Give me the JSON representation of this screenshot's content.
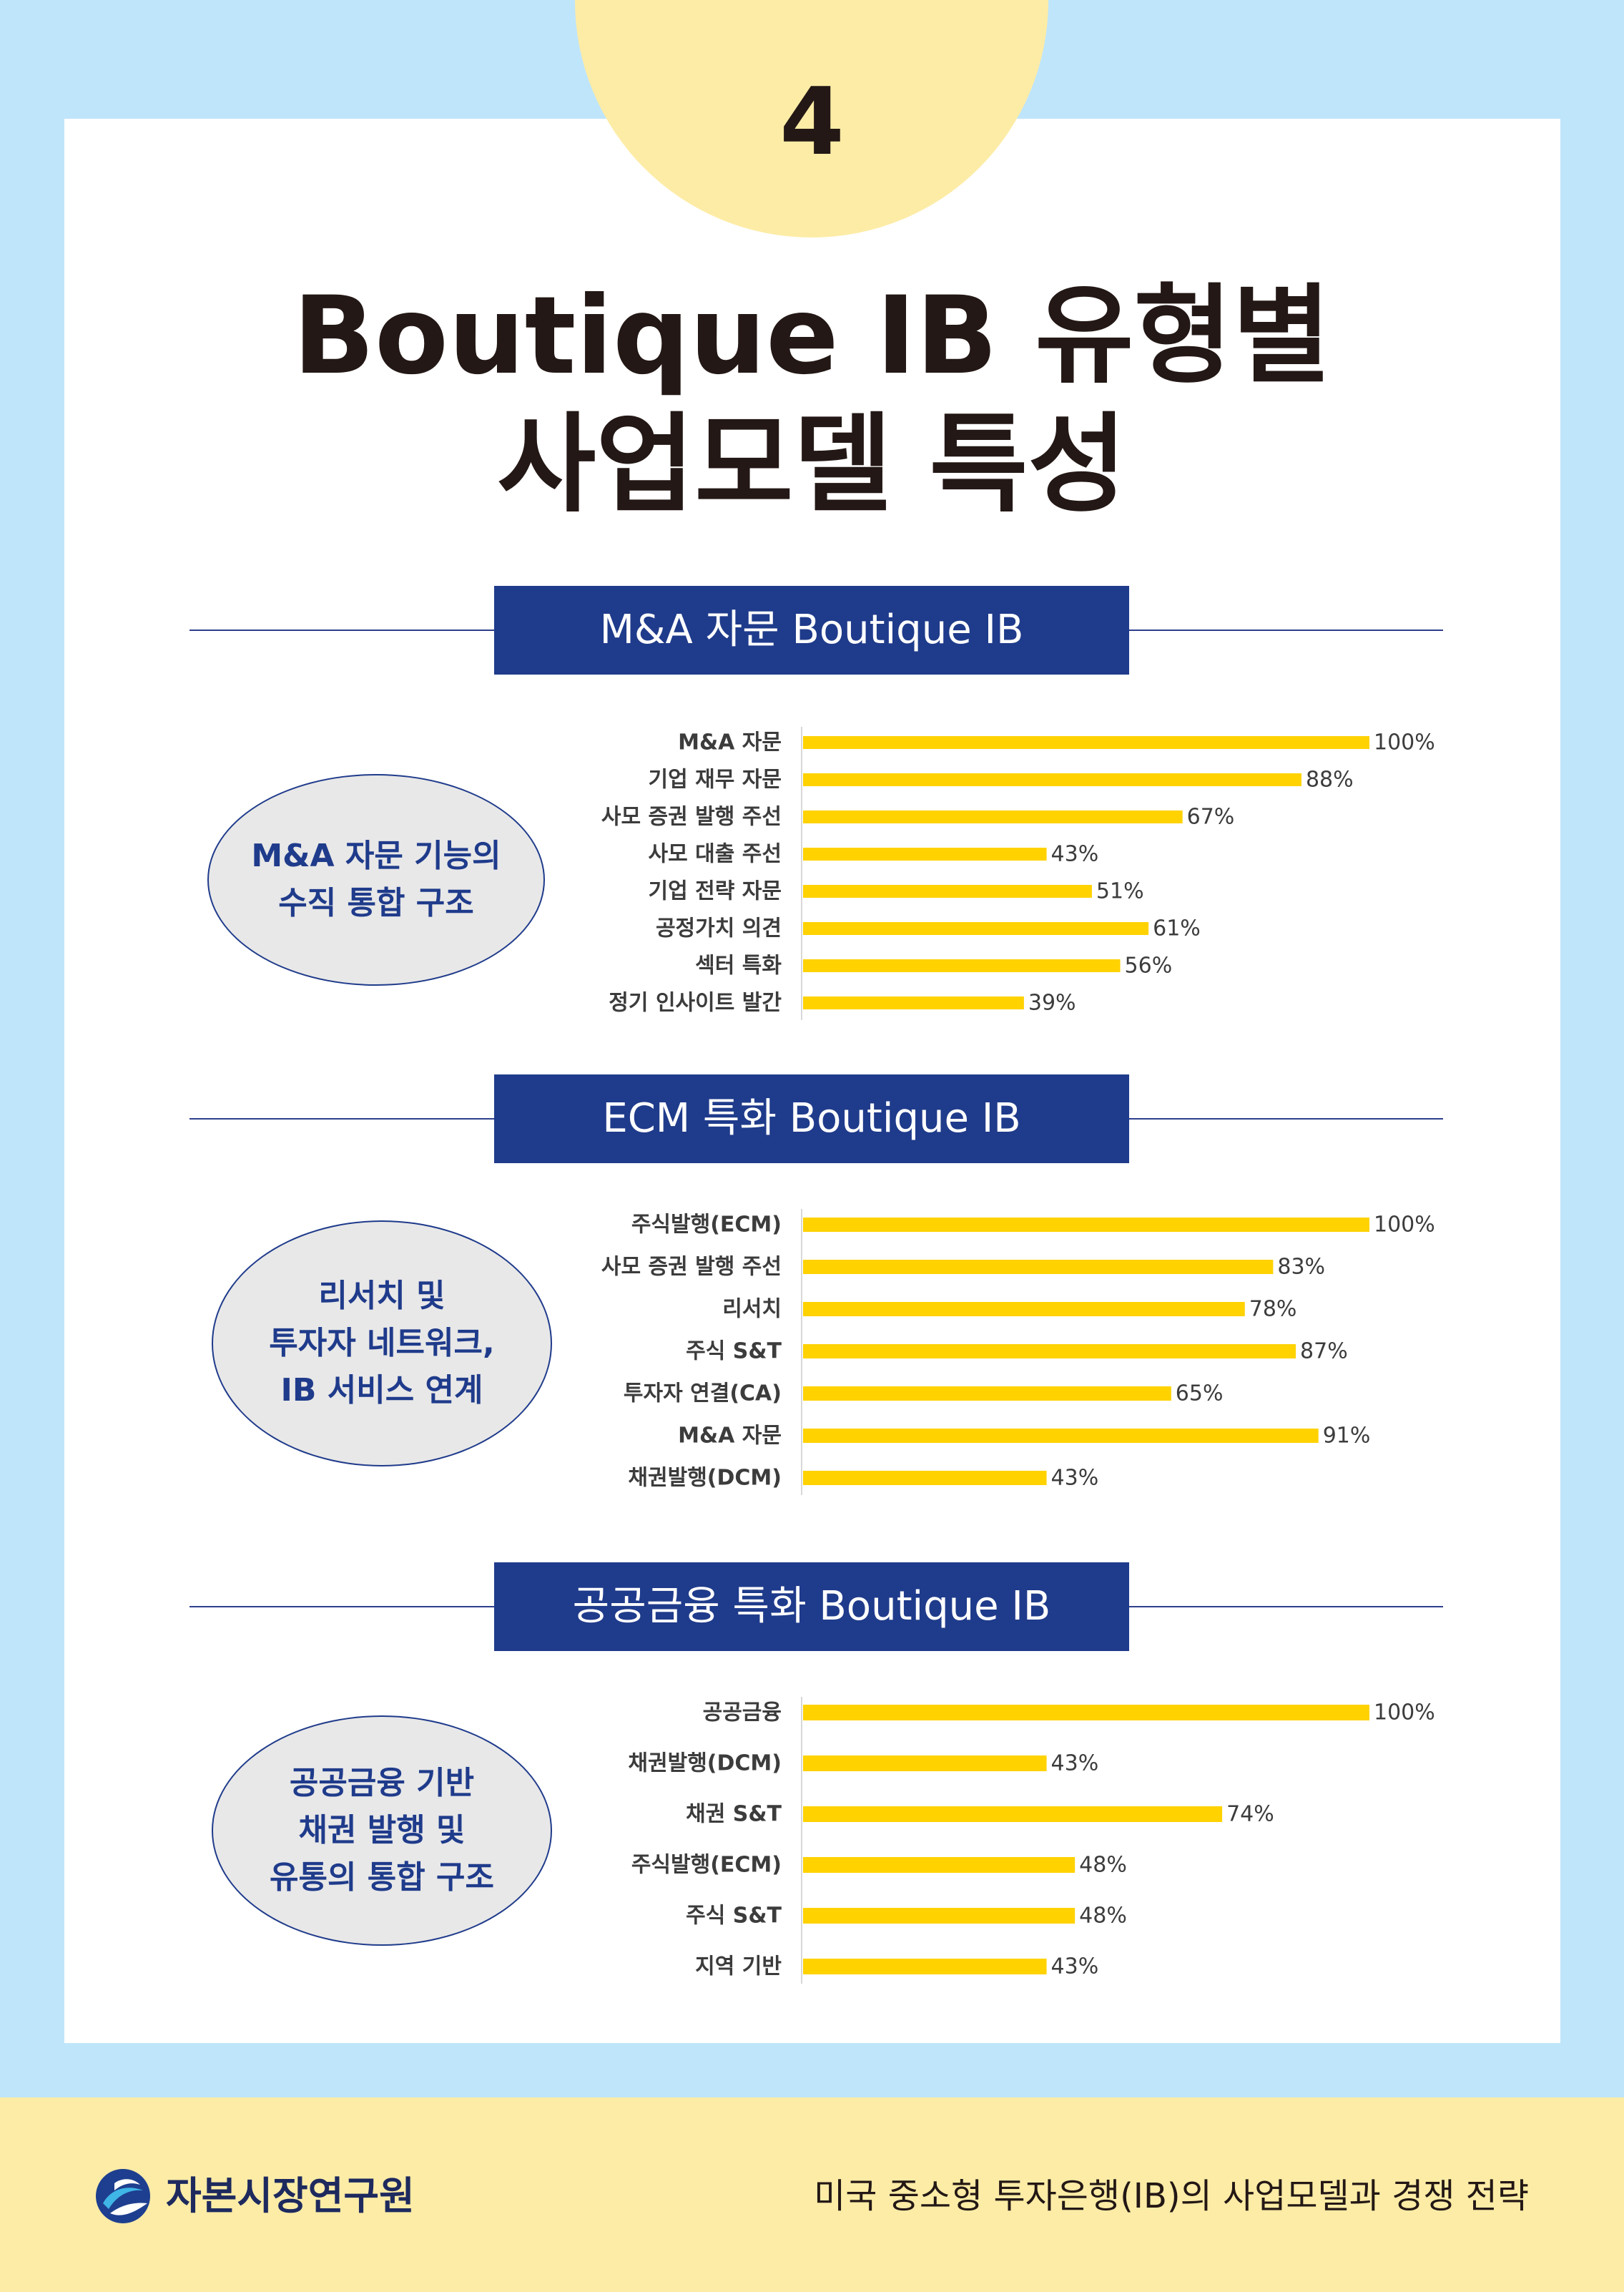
{
  "page_number": "4",
  "title_line1": "Boutique IB 유형별",
  "title_line2": "사업모델 특성",
  "colors": {
    "navy": "#1f3b8b",
    "bar_yellow": "#ffd200",
    "light_blue": "#bfe5fa",
    "cream": "#fdeca6"
  },
  "sections": [
    {
      "banner": "M&A 자문 Boutique IB",
      "ellipse_lines": [
        "M&A 자문 기능의",
        "수직 통합 구조"
      ],
      "chart_data": {
        "type": "bar",
        "orientation": "horizontal",
        "categories": [
          "M&A 자문",
          "기업 재무 자문",
          "사모 증권 발행 주선",
          "사모 대출 주선",
          "기업 전략 자문",
          "공정가치 의견",
          "섹터 특화",
          "정기 인사이트 발간"
        ],
        "values": [
          100,
          88,
          67,
          43,
          51,
          61,
          56,
          39
        ],
        "value_labels": [
          "100%",
          "88%",
          "67%",
          "43%",
          "51%",
          "61%",
          "56%",
          "39%"
        ],
        "xlim": [
          0,
          100
        ]
      }
    },
    {
      "banner": "ECM 특화 Boutique IB",
      "ellipse_lines": [
        "리서치 및",
        "투자자 네트워크,",
        "IB 서비스 연계"
      ],
      "chart_data": {
        "type": "bar",
        "orientation": "horizontal",
        "categories": [
          "주식발행(ECM)",
          "사모 증권 발행 주선",
          "리서치",
          "주식 S&T",
          "투자자 연결(CA)",
          "M&A 자문",
          "채권발행(DCM)"
        ],
        "values": [
          100,
          83,
          78,
          87,
          65,
          91,
          43
        ],
        "value_labels": [
          "100%",
          "83%",
          "78%",
          "87%",
          "65%",
          "91%",
          "43%"
        ],
        "xlim": [
          0,
          100
        ]
      }
    },
    {
      "banner": "공공금융 특화 Boutique IB",
      "ellipse_lines": [
        "공공금융 기반",
        "채권 발행 및",
        "유통의 통합 구조"
      ],
      "chart_data": {
        "type": "bar",
        "orientation": "horizontal",
        "categories": [
          "공공금융",
          "채권발행(DCM)",
          "채권 S&T",
          "주식발행(ECM)",
          "주식 S&T",
          "지역 기반"
        ],
        "values": [
          100,
          43,
          74,
          48,
          48,
          43
        ],
        "value_labels": [
          "100%",
          "43%",
          "74%",
          "48%",
          "48%",
          "43%"
        ],
        "xlim": [
          0,
          100
        ]
      }
    }
  ],
  "footer": {
    "logo_text": "자본시장연구원",
    "caption": "미국 중소형 투자은행(IB)의 사업모델과 경쟁 전략",
    "logo_icon": "kcmi-logo-icon"
  }
}
